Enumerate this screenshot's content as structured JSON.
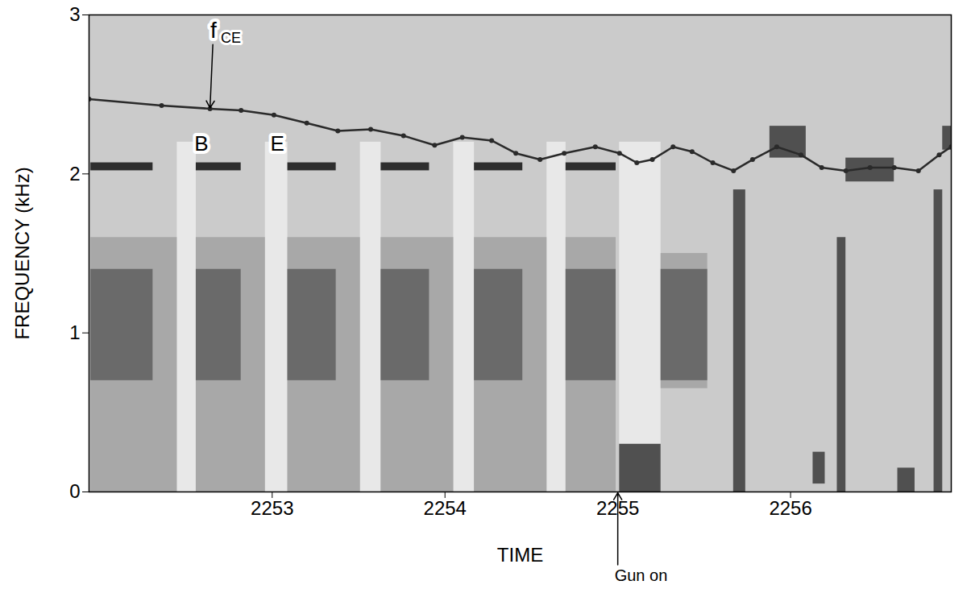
{
  "chart_data": {
    "type": "spectrogram",
    "x_label": "TIME",
    "y_label": "FREQUENCY (kHz)",
    "xlim": [
      2251.94,
      2256.93
    ],
    "xticks": [
      2253,
      2254,
      2255,
      2256
    ],
    "ylim": [
      0,
      3
    ],
    "yticks": [
      0,
      1,
      2,
      3
    ],
    "trace": {
      "color": "#2a2a2a",
      "marker": "dot",
      "line_style": "solid",
      "x": [
        2251.94,
        2252.36,
        2252.64,
        2252.82,
        2253.01,
        2253.2,
        2253.38,
        2253.57,
        2253.76,
        2253.94,
        2254.1,
        2254.27,
        2254.41,
        2254.55,
        2254.69,
        2254.87,
        2255.01,
        2255.11,
        2255.2,
        2255.32,
        2255.43,
        2255.55,
        2255.67,
        2255.78,
        2255.92,
        2256.06,
        2256.18,
        2256.32,
        2256.46,
        2256.6,
        2256.74,
        2256.86,
        2256.93
      ],
      "values": [
        2.47,
        2.43,
        2.41,
        2.4,
        2.37,
        2.32,
        2.27,
        2.28,
        2.24,
        2.18,
        2.23,
        2.21,
        2.13,
        2.09,
        2.13,
        2.17,
        2.13,
        2.07,
        2.09,
        2.17,
        2.14,
        2.07,
        2.02,
        2.09,
        2.17,
        2.12,
        2.04,
        2.02,
        2.04,
        2.04,
        2.02,
        2.12,
        2.17
      ]
    },
    "regions": [
      {
        "x1": 2252.45,
        "x2": 2252.56,
        "y1": 0,
        "y2": 2.2,
        "color": "#e8e8e8"
      },
      {
        "x1": 2252.96,
        "x2": 2253.09,
        "y1": 0,
        "y2": 2.2,
        "color": "#e8e8e8"
      },
      {
        "x1": 2253.51,
        "x2": 2253.63,
        "y1": 0,
        "y2": 2.2,
        "color": "#e8e8e8"
      },
      {
        "x1": 2254.05,
        "x2": 2254.17,
        "y1": 0,
        "y2": 2.2,
        "color": "#e8e8e8"
      },
      {
        "x1": 2254.59,
        "x2": 2254.7,
        "y1": 0,
        "y2": 2.2,
        "color": "#e8e8e8"
      },
      {
        "x1": 2255.01,
        "x2": 2255.25,
        "y1": 0,
        "y2": 2.2,
        "color": "#e8e8e8"
      },
      {
        "x1": 2251.95,
        "x2": 2252.45,
        "y1": 0,
        "y2": 1.6,
        "color": "#a8a8a8"
      },
      {
        "x1": 2252.56,
        "x2": 2252.96,
        "y1": 0,
        "y2": 1.6,
        "color": "#a8a8a8"
      },
      {
        "x1": 2253.09,
        "x2": 2253.51,
        "y1": 0,
        "y2": 1.6,
        "color": "#a8a8a8"
      },
      {
        "x1": 2253.63,
        "x2": 2254.05,
        "y1": 0,
        "y2": 1.6,
        "color": "#a8a8a8"
      },
      {
        "x1": 2254.17,
        "x2": 2254.59,
        "y1": 0,
        "y2": 1.6,
        "color": "#a8a8a8"
      },
      {
        "x1": 2254.7,
        "x2": 2254.99,
        "y1": 0,
        "y2": 1.6,
        "color": "#a8a8a8"
      },
      {
        "x1": 2255.25,
        "x2": 2255.52,
        "y1": 0.65,
        "y2": 1.5,
        "color": "#a8a8a8"
      },
      {
        "x1": 2251.95,
        "x2": 2252.31,
        "y1": 0.7,
        "y2": 1.4,
        "color": "#6a6a6a"
      },
      {
        "x1": 2252.56,
        "x2": 2252.82,
        "y1": 0.7,
        "y2": 1.4,
        "color": "#6a6a6a"
      },
      {
        "x1": 2253.09,
        "x2": 2253.37,
        "y1": 0.7,
        "y2": 1.4,
        "color": "#6a6a6a"
      },
      {
        "x1": 2253.63,
        "x2": 2253.91,
        "y1": 0.7,
        "y2": 1.4,
        "color": "#6a6a6a"
      },
      {
        "x1": 2254.17,
        "x2": 2254.45,
        "y1": 0.7,
        "y2": 1.4,
        "color": "#6a6a6a"
      },
      {
        "x1": 2254.7,
        "x2": 2254.99,
        "y1": 0.7,
        "y2": 1.4,
        "color": "#6a6a6a"
      },
      {
        "x1": 2255.25,
        "x2": 2255.52,
        "y1": 0.7,
        "y2": 1.4,
        "color": "#6a6a6a"
      },
      {
        "x1": 2251.95,
        "x2": 2252.31,
        "y1": 2.02,
        "y2": 2.07,
        "color": "#2e2e2e"
      },
      {
        "x1": 2252.56,
        "x2": 2252.82,
        "y1": 2.02,
        "y2": 2.07,
        "color": "#2e2e2e"
      },
      {
        "x1": 2253.09,
        "x2": 2253.37,
        "y1": 2.02,
        "y2": 2.07,
        "color": "#2e2e2e"
      },
      {
        "x1": 2253.63,
        "x2": 2253.91,
        "y1": 2.02,
        "y2": 2.07,
        "color": "#2e2e2e"
      },
      {
        "x1": 2254.17,
        "x2": 2254.45,
        "y1": 2.02,
        "y2": 2.07,
        "color": "#2e2e2e"
      },
      {
        "x1": 2254.7,
        "x2": 2254.99,
        "y1": 2.02,
        "y2": 2.07,
        "color": "#2e2e2e"
      },
      {
        "x1": 2255.01,
        "x2": 2255.25,
        "y1": 0,
        "y2": 0.3,
        "color": "#505050"
      },
      {
        "x1": 2255.67,
        "x2": 2255.74,
        "y1": 0,
        "y2": 1.9,
        "color": "#505050"
      },
      {
        "x1": 2256.13,
        "x2": 2256.2,
        "y1": 0.05,
        "y2": 0.25,
        "color": "#505050"
      },
      {
        "x1": 2256.27,
        "x2": 2256.32,
        "y1": 0,
        "y2": 1.6,
        "color": "#505050"
      },
      {
        "x1": 2256.62,
        "x2": 2256.72,
        "y1": 0,
        "y2": 0.15,
        "color": "#505050"
      },
      {
        "x1": 2256.83,
        "x2": 2256.88,
        "y1": 0,
        "y2": 1.9,
        "color": "#505050"
      },
      {
        "x1": 2255.88,
        "x2": 2256.09,
        "y1": 2.1,
        "y2": 2.3,
        "color": "#505050"
      },
      {
        "x1": 2256.32,
        "x2": 2256.6,
        "y1": 1.95,
        "y2": 2.1,
        "color": "#505050"
      },
      {
        "x1": 2256.88,
        "x2": 2256.93,
        "y1": 2.15,
        "y2": 2.3,
        "color": "#505050"
      }
    ],
    "annotations": [
      {
        "text": "f",
        "subscript": "CE",
        "x": 2252.66,
        "y": 2.9,
        "arrow_to": [
          2252.64,
          2.41
        ]
      },
      {
        "text": "B",
        "x": 2252.59,
        "y": 2.19
      },
      {
        "text": "E",
        "x": 2253.03,
        "y": 2.19
      },
      {
        "text": "Gun on",
        "x": 2255.0,
        "y": -0.53,
        "arrow_to": [
          2255.0,
          0
        ]
      }
    ]
  }
}
